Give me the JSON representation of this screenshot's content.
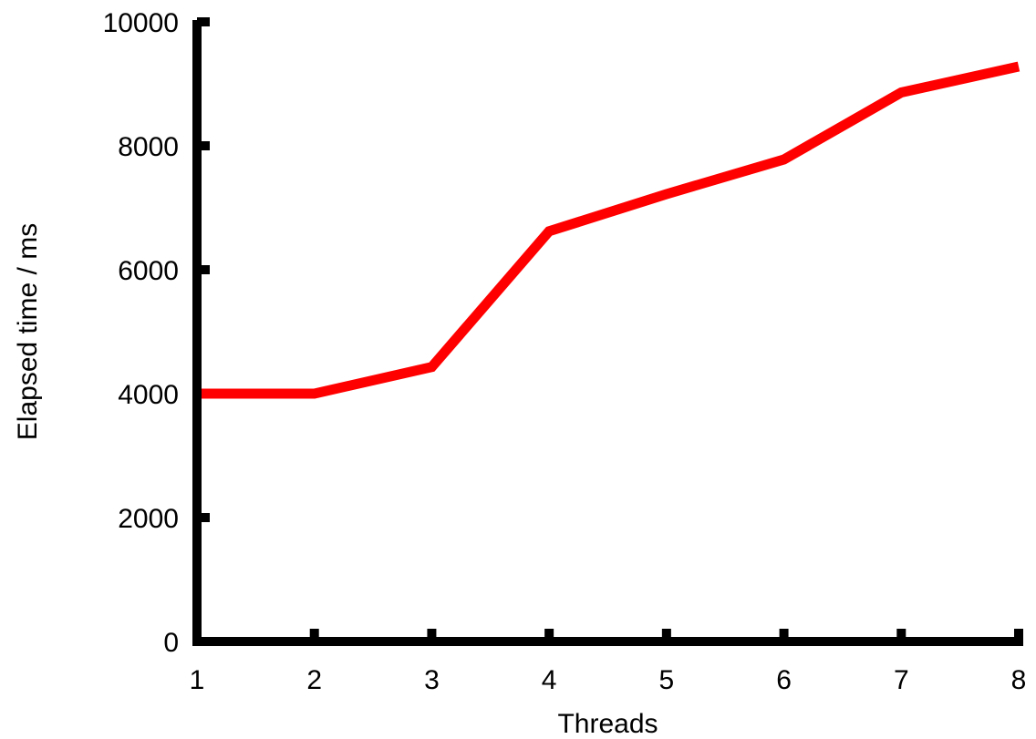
{
  "chart_data": {
    "type": "line",
    "title": "",
    "xlabel": "Threads",
    "ylabel": "Elapsed time / ms",
    "xlim": [
      1,
      8
    ],
    "ylim": [
      0,
      10000
    ],
    "x_ticks": [
      "1",
      "2",
      "3",
      "4",
      "5",
      "6",
      "7",
      "8"
    ],
    "y_ticks": [
      "0",
      "2000",
      "4000",
      "6000",
      "8000",
      "10000"
    ],
    "grid": false,
    "legend": "none",
    "series": [
      {
        "color": "#ff0000",
        "x": [
          1,
          2,
          3,
          4,
          5,
          6,
          7,
          8
        ],
        "values": [
          4000,
          4000,
          4430,
          6620,
          7220,
          7780,
          8860,
          9280
        ]
      }
    ]
  },
  "colors": {
    "axis": "#000000",
    "line": "#ff0000"
  }
}
